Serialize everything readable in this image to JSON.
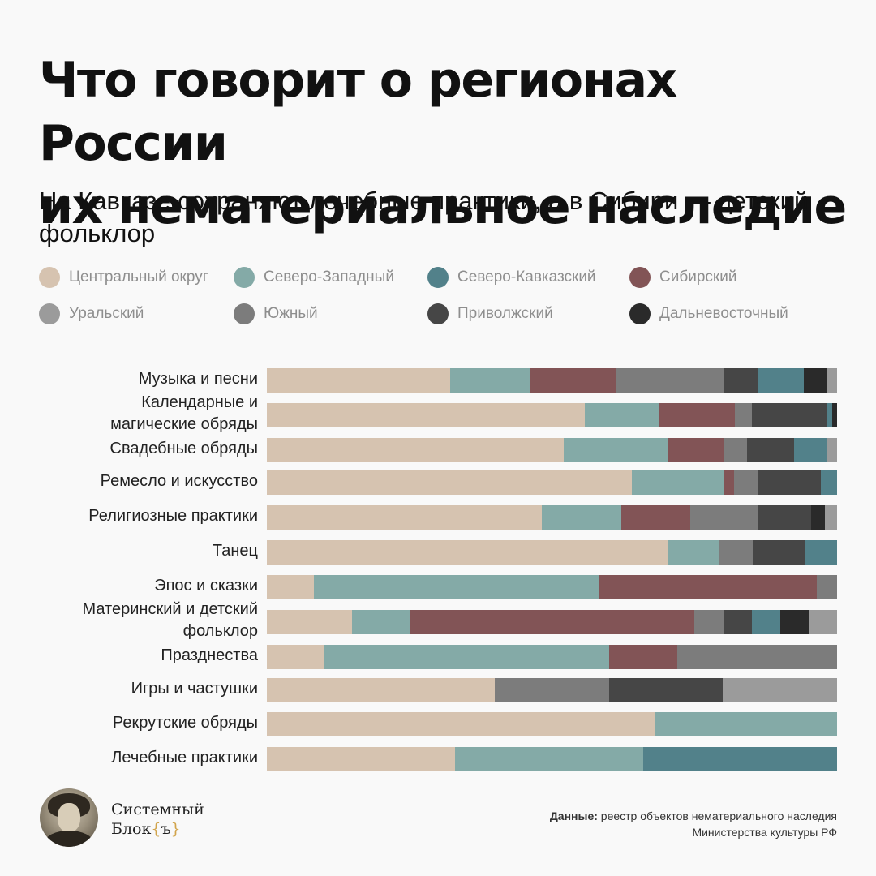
{
  "title_line1": "Что говорит о регионах России",
  "title_line2": "их нематериальное наследие",
  "subtitle_line1": "На Кавказе сохраняют лечебные практики, а в Сибири — детский",
  "subtitle_line2": "фольклор",
  "legend": [
    {
      "label": "Центральный округ",
      "color": "#d6c3b0"
    },
    {
      "label": "Северо-Западный",
      "color": "#84aaa7"
    },
    {
      "label": "Северо-Кавказский",
      "color": "#52818a"
    },
    {
      "label": "Сибирский",
      "color": "#825456"
    },
    {
      "label": "Уральский",
      "color": "#9b9b9b"
    },
    {
      "label": "Южный",
      "color": "#7c7c7c"
    },
    {
      "label": "Приволжский",
      "color": "#464646"
    },
    {
      "label": "Дальневосточный",
      "color": "#2a2a2a"
    }
  ],
  "chart_data": {
    "type": "bar",
    "orientation": "horizontal",
    "stacked": true,
    "normalized": true,
    "unit": "share, %",
    "categories": [
      [
        "Музыка и песни"
      ],
      [
        "Календарные и",
        "магические обряды"
      ],
      [
        "Свадебные обряды"
      ],
      [
        "Ремесло и искусство"
      ],
      [
        "Религиозные практики"
      ],
      [
        "Танец"
      ],
      [
        "Эпос и сказки"
      ],
      [
        "Материнский и детский",
        "фольклор"
      ],
      [
        "Празднества"
      ],
      [
        "Игры и частушки"
      ],
      [
        "Рекрутские обряды"
      ],
      [
        "Лечебные практики"
      ]
    ],
    "rows": [
      [
        {
          "s": "Центральный округ",
          "v": 32.2
        },
        {
          "s": "Северо-Западный",
          "v": 14.0
        },
        {
          "s": "Сибирский",
          "v": 15.0
        },
        {
          "s": "Южный",
          "v": 19.0
        },
        {
          "s": "Приволжский",
          "v": 6.0
        },
        {
          "s": "Северо-Кавказский",
          "v": 8.0
        },
        {
          "s": "Дальневосточный",
          "v": 4.0
        },
        {
          "s": "Уральский",
          "v": 1.8
        }
      ],
      [
        {
          "s": "Центральный округ",
          "v": 55.7
        },
        {
          "s": "Северо-Западный",
          "v": 13.2
        },
        {
          "s": "Сибирский",
          "v": 13.2
        },
        {
          "s": "Южный",
          "v": 3.0
        },
        {
          "s": "Приволжский",
          "v": 13.0
        },
        {
          "s": "Северо-Кавказский",
          "v": 1.0
        },
        {
          "s": "Дальневосточный",
          "v": 0.9
        }
      ],
      [
        {
          "s": "Центральный округ",
          "v": 52.0
        },
        {
          "s": "Северо-Западный",
          "v": 18.2
        },
        {
          "s": "Сибирский",
          "v": 10.0
        },
        {
          "s": "Южный",
          "v": 4.0
        },
        {
          "s": "Приволжский",
          "v": 8.2
        },
        {
          "s": "Северо-Кавказский",
          "v": 5.8
        },
        {
          "s": "Уральский",
          "v": 1.8
        }
      ],
      [
        {
          "s": "Центральный округ",
          "v": 64.0
        },
        {
          "s": "Северо-Западный",
          "v": 16.2
        },
        {
          "s": "Сибирский",
          "v": 1.8
        },
        {
          "s": "Южный",
          "v": 4.0
        },
        {
          "s": "Приволжский",
          "v": 11.2
        },
        {
          "s": "Северо-Кавказский",
          "v": 2.8
        }
      ],
      [
        {
          "s": "Центральный округ",
          "v": 48.2
        },
        {
          "s": "Северо-Западный",
          "v": 14.0
        },
        {
          "s": "Сибирский",
          "v": 12.0
        },
        {
          "s": "Южный",
          "v": 12.0
        },
        {
          "s": "Приволжский",
          "v": 9.2
        },
        {
          "s": "Дальневосточный",
          "v": 2.4
        },
        {
          "s": "Уральский",
          "v": 2.2
        }
      ],
      [
        {
          "s": "Центральный округ",
          "v": 70.2
        },
        {
          "s": "Северо-Западный",
          "v": 9.2
        },
        {
          "s": "Южный",
          "v": 5.8
        },
        {
          "s": "Приволжский",
          "v": 9.2
        },
        {
          "s": "Северо-Кавказский",
          "v": 5.6
        }
      ],
      [
        {
          "s": "Центральный округ",
          "v": 8.2
        },
        {
          "s": "Северо-Западный",
          "v": 50.0
        },
        {
          "s": "Сибирский",
          "v": 38.2
        },
        {
          "s": "Южный",
          "v": 3.6
        }
      ],
      [
        {
          "s": "Центральный округ",
          "v": 15.0
        },
        {
          "s": "Северо-Западный",
          "v": 10.0
        },
        {
          "s": "Сибирский",
          "v": 50.0
        },
        {
          "s": "Южный",
          "v": 5.2
        },
        {
          "s": "Приволжский",
          "v": 4.8
        },
        {
          "s": "Северо-Кавказский",
          "v": 5.0
        },
        {
          "s": "Дальневосточный",
          "v": 5.2
        },
        {
          "s": "Уральский",
          "v": 4.8
        }
      ],
      [
        {
          "s": "Центральный округ",
          "v": 10.0
        },
        {
          "s": "Северо-Западный",
          "v": 50.0
        },
        {
          "s": "Сибирский",
          "v": 12.0
        },
        {
          "s": "Южный",
          "v": 28.0
        }
      ],
      [
        {
          "s": "Центральный округ",
          "v": 40.0
        },
        {
          "s": "Южный",
          "v": 20.0
        },
        {
          "s": "Приволжский",
          "v": 20.0
        },
        {
          "s": "Уральский",
          "v": 20.0
        }
      ],
      [
        {
          "s": "Центральный округ",
          "v": 68.0
        },
        {
          "s": "Северо-Западный",
          "v": 32.0
        }
      ],
      [
        {
          "s": "Центральный округ",
          "v": 33.0
        },
        {
          "s": "Северо-Западный",
          "v": 33.0
        },
        {
          "s": "Северо-Кавказский",
          "v": 34.0
        }
      ]
    ]
  },
  "brand_line1": "Системный",
  "brand_line2_text": "Блок",
  "brand_brace_open": "{",
  "brand_brace_char": "ъ",
  "brand_brace_close": "}",
  "source_label": "Данные:",
  "source_line1": " реестр объектов нематериального наследия",
  "source_line2": "Министерства культуры РФ"
}
